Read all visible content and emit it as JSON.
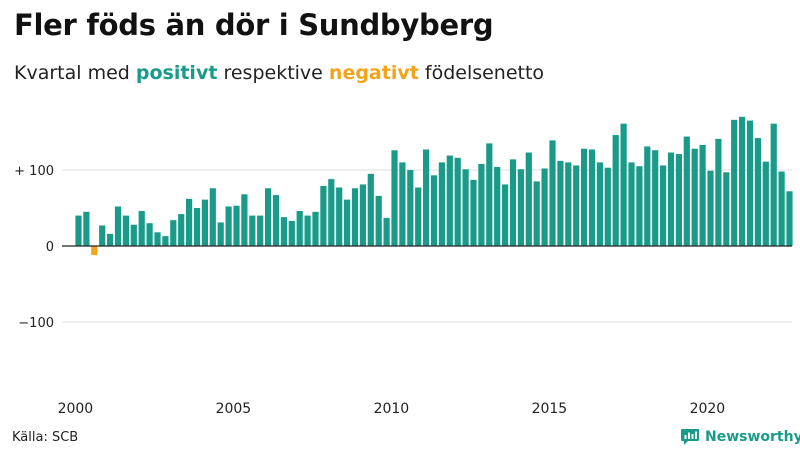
{
  "title": "Fler föds än dör i Sundbyberg",
  "subtitle": {
    "prefix": "Kvartal med",
    "positive_word": "positivt",
    "middle": "respektive",
    "negative_word": "negativt",
    "suffix": "födelsenetto"
  },
  "source": "Källa: SCB",
  "brand": {
    "name": "Newsworthy",
    "icon": "newsworthy-logo-icon"
  },
  "colors": {
    "positive": "#1a9b8a",
    "negative": "#f2a51a",
    "grid": "#dddddd",
    "zero_line": "#222222"
  },
  "chart_data": {
    "type": "bar",
    "title": "Fler föds än dör i Sundbyberg",
    "subtitle": "Kvartal med positivt respektive negativt födelsenetto",
    "xlabel": "",
    "ylabel": "",
    "ylim": [
      -183,
      183
    ],
    "grid": true,
    "y_ticks": [
      {
        "value": 100,
        "label": "+ 100"
      },
      {
        "value": 0,
        "label": "0"
      },
      {
        "value": -100,
        "label": "−100"
      }
    ],
    "x_ticks": [
      {
        "year": 2000,
        "label": "2000"
      },
      {
        "year": 2005,
        "label": "2005"
      },
      {
        "year": 2010,
        "label": "2010"
      },
      {
        "year": 2015,
        "label": "2015"
      },
      {
        "year": 2020,
        "label": "2020"
      }
    ],
    "start_year": 2000,
    "periods_per_year": 4,
    "values": [
      40,
      45,
      -12,
      27,
      16,
      52,
      40,
      28,
      46,
      30,
      18,
      13,
      34,
      42,
      62,
      50,
      61,
      76,
      31,
      52,
      53,
      68,
      40,
      40,
      76,
      67,
      38,
      33,
      46,
      40,
      45,
      79,
      88,
      77,
      61,
      76,
      81,
      95,
      66,
      37,
      126,
      110,
      100,
      77,
      127,
      93,
      110,
      119,
      116,
      101,
      87,
      108,
      135,
      104,
      81,
      114,
      101,
      123,
      85,
      102,
      139,
      112,
      110,
      106,
      128,
      127,
      110,
      103,
      146,
      161,
      110,
      105,
      131,
      126,
      106,
      123,
      121,
      144,
      128,
      133,
      99,
      141,
      97,
      166,
      170,
      165,
      142,
      111,
      161,
      98,
      72
    ]
  }
}
